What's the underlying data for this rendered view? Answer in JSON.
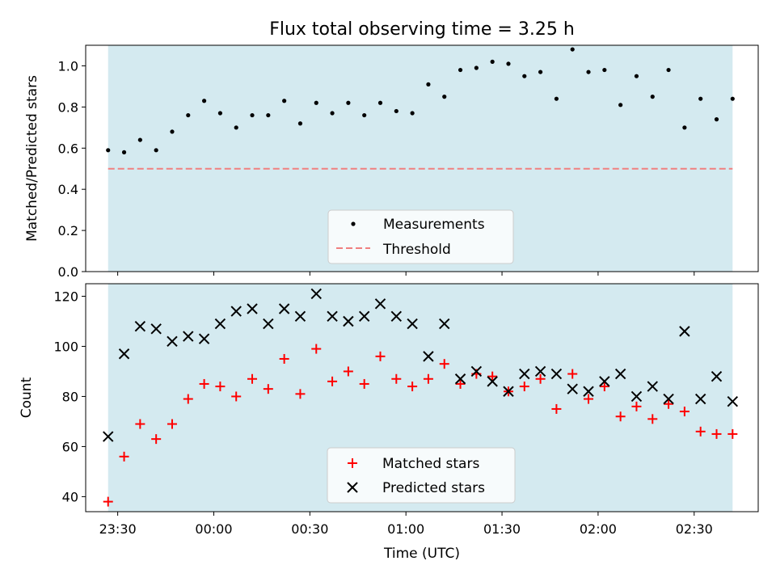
{
  "chart_data": [
    {
      "type": "scatter",
      "title": "Flux total observing time = 3.25 h",
      "ylabel": "Matched/Predicted stars",
      "xlabel": "",
      "xlim": [
        "23:20",
        "02:50"
      ],
      "ylim": [
        0,
        1.1
      ],
      "yticks": [
        0.0,
        0.2,
        0.4,
        0.6,
        0.8,
        1.0
      ],
      "ytick_labels": [
        "0.0",
        "0.2",
        "0.4",
        "0.6",
        "0.8",
        "1.0"
      ],
      "observing_window": [
        "23:27",
        "02:42"
      ],
      "observing_window_color": "#d4eaf0",
      "grid": false,
      "legend_position": "lower center",
      "threshold": {
        "name": "Threshold",
        "value": 0.5,
        "color": "#f08080",
        "style": "dashed"
      },
      "series": [
        {
          "name": "Measurements",
          "color": "#000000",
          "marker": "dot",
          "x": [
            "23:27",
            "23:32",
            "23:37",
            "23:42",
            "23:47",
            "23:52",
            "23:57",
            "00:02",
            "00:07",
            "00:12",
            "00:17",
            "00:22",
            "00:27",
            "00:32",
            "00:37",
            "00:42",
            "00:47",
            "00:52",
            "00:57",
            "01:02",
            "01:07",
            "01:12",
            "01:17",
            "01:22",
            "01:27",
            "01:32",
            "01:37",
            "01:42",
            "01:47",
            "01:52",
            "01:57",
            "02:02",
            "02:07",
            "02:12",
            "02:17",
            "02:22",
            "02:27",
            "02:32",
            "02:37",
            "02:42"
          ],
          "y": [
            0.59,
            0.58,
            0.64,
            0.59,
            0.68,
            0.76,
            0.83,
            0.77,
            0.7,
            0.76,
            0.76,
            0.83,
            0.72,
            0.82,
            0.77,
            0.82,
            0.76,
            0.82,
            0.78,
            0.77,
            0.91,
            0.85,
            0.98,
            0.99,
            1.02,
            1.01,
            0.95,
            0.97,
            0.84,
            1.08,
            0.97,
            0.98,
            0.81,
            0.95,
            0.85,
            0.98,
            0.7,
            0.84,
            0.74,
            0.84
          ]
        }
      ]
    },
    {
      "type": "scatter",
      "title": "",
      "ylabel": "Count",
      "xlabel": "Time (UTC)",
      "xlim": [
        "23:20",
        "02:50"
      ],
      "ylim": [
        34,
        125
      ],
      "yticks": [
        40,
        60,
        80,
        100,
        120
      ],
      "ytick_labels": [
        "40",
        "60",
        "80",
        "100",
        "120"
      ],
      "xticks": [
        "23:30",
        "00:00",
        "00:30",
        "01:00",
        "01:30",
        "02:00",
        "02:30"
      ],
      "observing_window": [
        "23:27",
        "02:42"
      ],
      "observing_window_color": "#d4eaf0",
      "grid": false,
      "legend_position": "lower center",
      "series": [
        {
          "name": "Matched stars",
          "color": "#ff0000",
          "marker": "plus",
          "x": [
            "23:27",
            "23:32",
            "23:37",
            "23:42",
            "23:47",
            "23:52",
            "23:57",
            "00:02",
            "00:07",
            "00:12",
            "00:17",
            "00:22",
            "00:27",
            "00:32",
            "00:37",
            "00:42",
            "00:47",
            "00:52",
            "00:57",
            "01:02",
            "01:07",
            "01:12",
            "01:17",
            "01:22",
            "01:27",
            "01:32",
            "01:37",
            "01:42",
            "01:47",
            "01:52",
            "01:57",
            "02:02",
            "02:07",
            "02:12",
            "02:17",
            "02:22",
            "02:27",
            "02:32",
            "02:37",
            "02:42"
          ],
          "y": [
            38,
            56,
            69,
            63,
            69,
            79,
            85,
            84,
            80,
            87,
            83,
            95,
            81,
            99,
            86,
            90,
            85,
            96,
            87,
            84,
            87,
            93,
            85,
            89,
            88,
            82,
            84,
            87,
            75,
            89,
            79,
            84,
            72,
            76,
            71,
            77,
            74,
            66,
            65,
            65
          ]
        },
        {
          "name": "Predicted stars",
          "color": "#000000",
          "marker": "x",
          "x": [
            "23:27",
            "23:32",
            "23:37",
            "23:42",
            "23:47",
            "23:52",
            "23:57",
            "00:02",
            "00:07",
            "00:12",
            "00:17",
            "00:22",
            "00:27",
            "00:32",
            "00:37",
            "00:42",
            "00:47",
            "00:52",
            "00:57",
            "01:02",
            "01:07",
            "01:12",
            "01:17",
            "01:22",
            "01:27",
            "01:32",
            "01:37",
            "01:42",
            "01:47",
            "01:52",
            "01:57",
            "02:02",
            "02:07",
            "02:12",
            "02:17",
            "02:22",
            "02:27",
            "02:32",
            "02:37",
            "02:42"
          ],
          "y": [
            64,
            97,
            108,
            107,
            102,
            104,
            103,
            109,
            114,
            115,
            109,
            115,
            112,
            121,
            112,
            110,
            112,
            117,
            112,
            109,
            96,
            109,
            87,
            90,
            86,
            82,
            89,
            90,
            89,
            83,
            82,
            86,
            89,
            80,
            84,
            79,
            106,
            79,
            88,
            78
          ]
        }
      ]
    }
  ]
}
